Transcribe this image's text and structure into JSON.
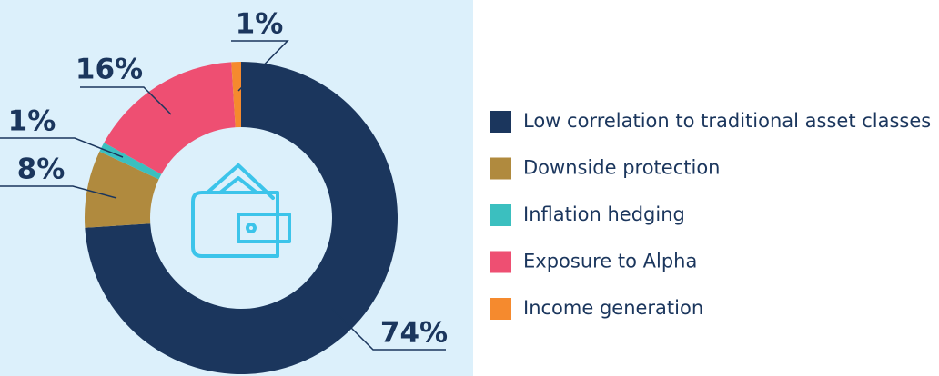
{
  "chart_data": {
    "type": "donut",
    "categories": [
      "Low correlation to traditional asset classes",
      "Downside protection",
      "Inflation hedging",
      "Exposure to Alpha",
      "Income generation"
    ],
    "values": [
      74,
      8,
      1,
      16,
      1
    ],
    "value_labels": [
      "74%",
      "8%",
      "1%",
      "16%",
      "1%"
    ],
    "colors": [
      "#1b365d",
      "#b08a3e",
      "#3bbfbf",
      "#ee4f72",
      "#f58a2e"
    ],
    "legend": "right"
  }
}
